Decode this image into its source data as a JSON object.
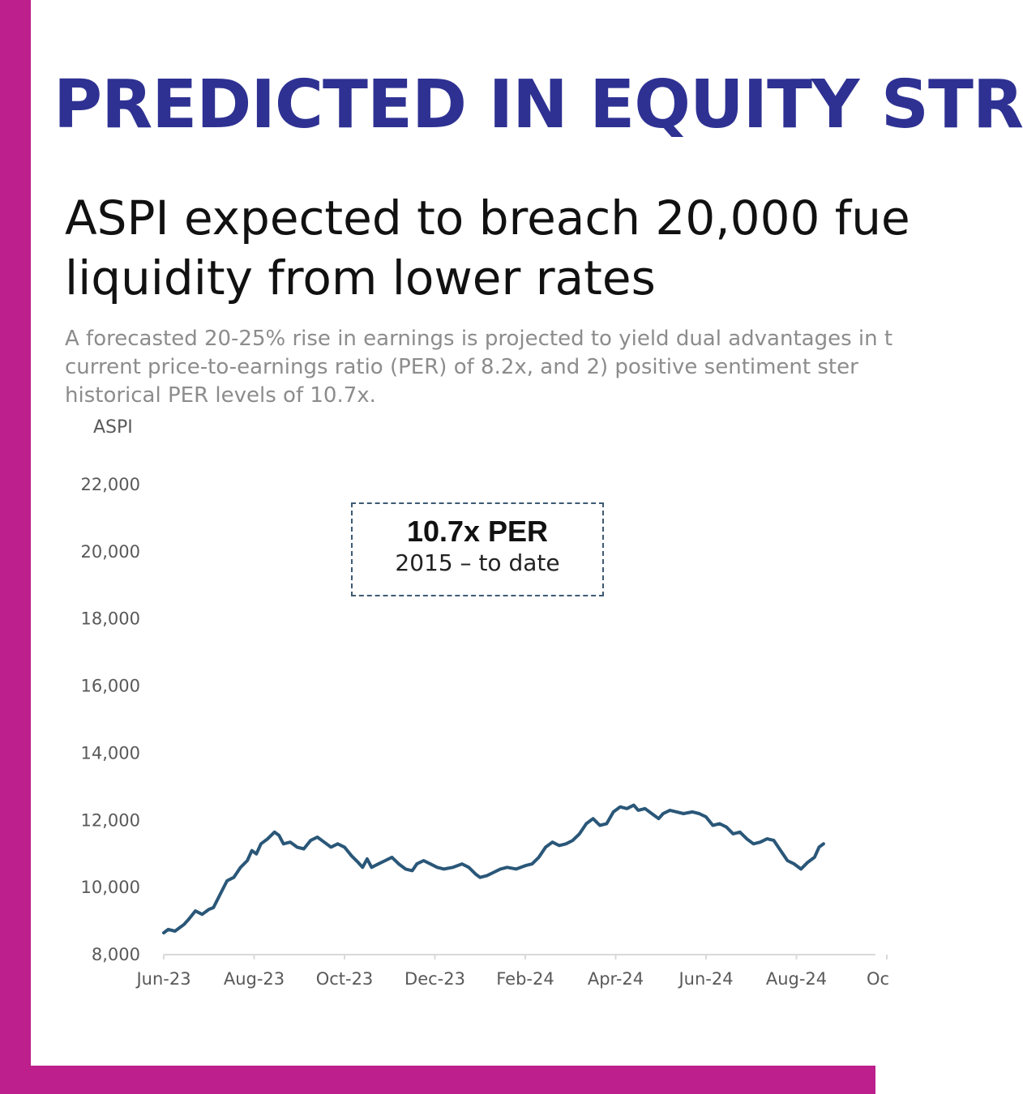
{
  "header": {
    "title": "PREDICTED IN EQUITY STR"
  },
  "subtitle": {
    "line1": "ASPI expected to breach 20,000 fue",
    "line2": "liquidity from lower rates"
  },
  "description": {
    "line1": "A forecasted 20-25% rise in earnings is projected to yield dual advantages in t",
    "line2": "current price-to-earnings ratio (PER) of 8.2x, and 2) positive sentiment ster",
    "line3": "historical PER levels of 10.7x."
  },
  "annotation": {
    "title": "10.7x PER",
    "subtitle": "2015 – to date"
  },
  "colors": {
    "frame": "#bd1f8c",
    "headline": "#2e3192",
    "series": "#2a5778"
  },
  "chart_data": {
    "type": "line",
    "ylabel": "ASPI",
    "ylim": [
      8000,
      22000
    ],
    "yticks": [
      "22,000",
      "20,000",
      "18,000",
      "16,000",
      "14,000",
      "12,000",
      "10,000",
      "8,000"
    ],
    "ytick_values": [
      22000,
      20000,
      18000,
      16000,
      14000,
      12000,
      10000,
      8000
    ],
    "xticks": [
      "Jun-23",
      "Aug-23",
      "Oct-23",
      "Dec-23",
      "Feb-24",
      "Apr-24",
      "Jun-24",
      "Aug-24",
      "Oc"
    ],
    "x_months_per_tick": 2,
    "grid": false,
    "series": [
      {
        "values_by_month": [
          [
            0.0,
            8650
          ],
          [
            0.1,
            8750
          ],
          [
            0.25,
            8700
          ],
          [
            0.45,
            8900
          ],
          [
            0.55,
            9050
          ],
          [
            0.7,
            9300
          ],
          [
            0.85,
            9200
          ],
          [
            1.0,
            9350
          ],
          [
            1.1,
            9400
          ],
          [
            1.25,
            9800
          ],
          [
            1.4,
            10200
          ],
          [
            1.55,
            10300
          ],
          [
            1.7,
            10600
          ],
          [
            1.85,
            10800
          ],
          [
            1.95,
            11100
          ],
          [
            2.05,
            11000
          ],
          [
            2.15,
            11300
          ],
          [
            2.3,
            11450
          ],
          [
            2.45,
            11650
          ],
          [
            2.55,
            11550
          ],
          [
            2.65,
            11300
          ],
          [
            2.8,
            11350
          ],
          [
            2.95,
            11200
          ],
          [
            3.1,
            11150
          ],
          [
            3.25,
            11400
          ],
          [
            3.4,
            11500
          ],
          [
            3.55,
            11350
          ],
          [
            3.7,
            11200
          ],
          [
            3.85,
            11300
          ],
          [
            4.0,
            11200
          ],
          [
            4.15,
            10950
          ],
          [
            4.3,
            10750
          ],
          [
            4.4,
            10600
          ],
          [
            4.5,
            10850
          ],
          [
            4.6,
            10600
          ],
          [
            4.75,
            10700
          ],
          [
            4.9,
            10800
          ],
          [
            5.05,
            10900
          ],
          [
            5.2,
            10700
          ],
          [
            5.35,
            10550
          ],
          [
            5.5,
            10500
          ],
          [
            5.6,
            10700
          ],
          [
            5.75,
            10800
          ],
          [
            5.9,
            10700
          ],
          [
            6.05,
            10600
          ],
          [
            6.2,
            10550
          ],
          [
            6.4,
            10600
          ],
          [
            6.6,
            10700
          ],
          [
            6.75,
            10600
          ],
          [
            6.9,
            10400
          ],
          [
            7.0,
            10300
          ],
          [
            7.15,
            10350
          ],
          [
            7.3,
            10450
          ],
          [
            7.45,
            10550
          ],
          [
            7.6,
            10600
          ],
          [
            7.8,
            10550
          ],
          [
            8.0,
            10650
          ],
          [
            8.15,
            10700
          ],
          [
            8.3,
            10900
          ],
          [
            8.45,
            11200
          ],
          [
            8.6,
            11350
          ],
          [
            8.75,
            11250
          ],
          [
            8.9,
            11300
          ],
          [
            9.05,
            11400
          ],
          [
            9.2,
            11600
          ],
          [
            9.35,
            11900
          ],
          [
            9.5,
            12050
          ],
          [
            9.65,
            11850
          ],
          [
            9.8,
            11900
          ],
          [
            9.95,
            12250
          ],
          [
            10.1,
            12400
          ],
          [
            10.25,
            12350
          ],
          [
            10.4,
            12450
          ],
          [
            10.5,
            12300
          ],
          [
            10.65,
            12350
          ],
          [
            10.8,
            12200
          ],
          [
            10.95,
            12050
          ],
          [
            11.05,
            12200
          ],
          [
            11.2,
            12300
          ],
          [
            11.35,
            12250
          ],
          [
            11.5,
            12200
          ],
          [
            11.7,
            12250
          ],
          [
            11.85,
            12200
          ],
          [
            12.0,
            12100
          ],
          [
            12.15,
            11850
          ],
          [
            12.3,
            11900
          ],
          [
            12.45,
            11800
          ],
          [
            12.6,
            11600
          ],
          [
            12.75,
            11650
          ],
          [
            12.9,
            11450
          ],
          [
            13.05,
            11300
          ],
          [
            13.2,
            11350
          ],
          [
            13.35,
            11450
          ],
          [
            13.5,
            11400
          ],
          [
            13.65,
            11100
          ],
          [
            13.8,
            10800
          ],
          [
            13.95,
            10700
          ],
          [
            14.1,
            10550
          ],
          [
            14.25,
            10750
          ],
          [
            14.4,
            10900
          ],
          [
            14.5,
            11200
          ],
          [
            14.6,
            11300
          ]
        ]
      }
    ]
  }
}
